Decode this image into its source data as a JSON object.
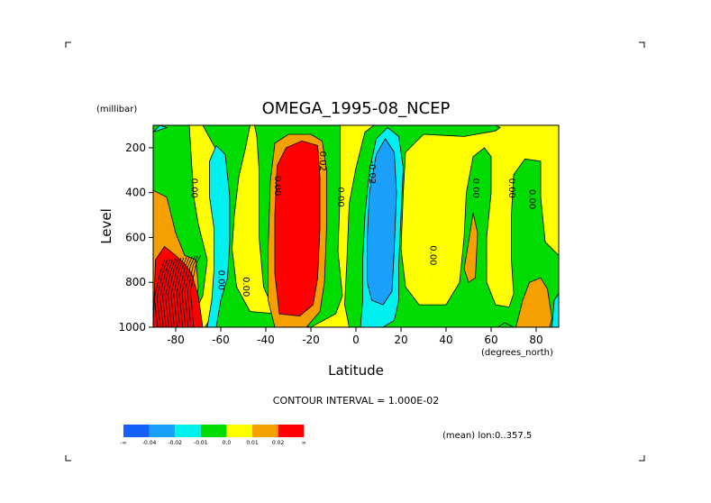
{
  "chart_data": {
    "type": "heatmap",
    "title": "OMEGA_1995-08_NCEP",
    "xlabel": "Latitude",
    "x_units": "(degrees_north)",
    "ylabel": "Level",
    "y_units": "(millibar)",
    "xlim": [
      -90,
      90
    ],
    "ylim": [
      1000,
      100
    ],
    "x_ticks": [
      -80,
      -60,
      -40,
      -20,
      0,
      20,
      40,
      60,
      80
    ],
    "x_tick_labels": [
      "-80",
      "-60",
      "-40",
      "-20",
      "0",
      "20",
      "40",
      "60",
      "80"
    ],
    "y_ticks": [
      200,
      400,
      600,
      800,
      1000
    ],
    "y_tick_labels": [
      "200",
      "400",
      "600",
      "800",
      "1000"
    ],
    "contour_interval": "CONTOUR INTERVAL = 1.000E-02",
    "subtitle": "(mean) lon:0..357.5",
    "colorbar": {
      "colors": [
        "#1560fb",
        "#1aa0f8",
        "#00f0f0",
        "#00dc00",
        "#ffff00",
        "#f5a000",
        "#ff0000"
      ],
      "labels": [
        "-∞",
        "-0.04",
        "-0.02",
        "-0.01",
        "0.0",
        "0.01",
        "0.02",
        "∞"
      ]
    },
    "background_color": "#ffff00",
    "regions": [
      {
        "color": "#00dc00",
        "pts": [
          [
            -90,
            1000
          ],
          [
            -75,
            1000
          ],
          [
            -68,
            860
          ],
          [
            -66,
            700
          ],
          [
            -70,
            540
          ],
          [
            -72,
            420
          ],
          [
            -74,
            100
          ],
          [
            -90,
            100
          ]
        ]
      },
      {
        "color": "#00dc00",
        "pts": [
          [
            -68,
            100
          ],
          [
            -47,
            100
          ],
          [
            -49,
            200
          ],
          [
            -52,
            330
          ],
          [
            -54,
            500
          ],
          [
            -55,
            650
          ],
          [
            -53,
            820
          ],
          [
            -47,
            930
          ],
          [
            -35,
            940
          ],
          [
            -25,
            1000
          ],
          [
            -67,
            1000
          ],
          [
            -62,
            920
          ],
          [
            -59,
            850
          ],
          [
            -57,
            750
          ],
          [
            -57,
            550
          ],
          [
            -58,
            350
          ],
          [
            -62,
            210
          ]
        ]
      },
      {
        "color": "#00dc00",
        "pts": [
          [
            -45,
            100
          ],
          [
            -7,
            100
          ],
          [
            -7,
            400
          ],
          [
            -8,
            660
          ],
          [
            -6,
            860
          ],
          [
            -9,
            940
          ],
          [
            -20,
            1000
          ],
          [
            -35,
            960
          ],
          [
            -41,
            820
          ],
          [
            -43,
            600
          ],
          [
            -43,
            300
          ],
          [
            -44,
            150
          ]
        ]
      },
      {
        "color": "#00dc00",
        "pts": [
          [
            -3,
            1000
          ],
          [
            -5,
            900
          ],
          [
            -4,
            700
          ],
          [
            -3,
            450
          ],
          [
            0,
            290
          ],
          [
            4,
            130
          ],
          [
            8,
            100
          ],
          [
            62,
            100
          ],
          [
            64,
            110
          ],
          [
            62,
            125
          ],
          [
            48,
            150
          ],
          [
            30,
            140
          ],
          [
            22,
            220
          ],
          [
            21,
            400
          ],
          [
            20,
            650
          ],
          [
            22,
            820
          ],
          [
            28,
            900
          ],
          [
            40,
            900
          ],
          [
            46,
            800
          ],
          [
            48,
            600
          ],
          [
            49,
            400
          ],
          [
            52,
            240
          ],
          [
            57,
            200
          ],
          [
            60,
            240
          ],
          [
            60,
            400
          ],
          [
            58,
            600
          ],
          [
            58,
            800
          ],
          [
            62,
            900
          ],
          [
            68,
            910
          ],
          [
            70,
            850
          ],
          [
            69,
            700
          ],
          [
            69,
            500
          ],
          [
            70,
            320
          ],
          [
            75,
            250
          ],
          [
            82,
            260
          ],
          [
            82,
            420
          ],
          [
            84,
            620
          ],
          [
            90,
            680
          ],
          [
            90,
            1000
          ]
        ]
      },
      {
        "color": "#00dc00",
        "pts": [
          [
            -29,
            1000
          ],
          [
            -26,
            960
          ],
          [
            -23,
            1000
          ]
        ]
      },
      {
        "color": "#00dc00",
        "pts": [
          [
            63,
            1000
          ],
          [
            66,
            980
          ],
          [
            70,
            1000
          ]
        ]
      },
      {
        "color": "#00f0f0",
        "pts": [
          [
            -66,
            1000
          ],
          [
            -64,
            880
          ],
          [
            -63,
            740
          ],
          [
            -63,
            560
          ],
          [
            -65,
            420
          ],
          [
            -65,
            260
          ],
          [
            -62,
            190
          ],
          [
            -58,
            230
          ],
          [
            -56,
            420
          ],
          [
            -56,
            620
          ],
          [
            -57,
            780
          ],
          [
            -60,
            880
          ],
          [
            -62,
            1000
          ]
        ]
      },
      {
        "color": "#00f0f0",
        "pts": [
          [
            2,
            1000
          ],
          [
            3,
            880
          ],
          [
            3,
            700
          ],
          [
            4,
            500
          ],
          [
            6,
            300
          ],
          [
            9,
            160
          ],
          [
            14,
            110
          ],
          [
            19,
            150
          ],
          [
            21,
            290
          ],
          [
            20,
            500
          ],
          [
            19,
            720
          ],
          [
            19,
            880
          ],
          [
            17,
            970
          ],
          [
            12,
            1000
          ]
        ]
      },
      {
        "color": "#00f0f0",
        "pts": [
          [
            -90,
            130
          ],
          [
            -87,
            100
          ],
          [
            -84,
            110
          ]
        ]
      },
      {
        "color": "#00f0f0",
        "pts": [
          [
            88,
            880
          ],
          [
            90,
            850
          ],
          [
            90,
            1000
          ],
          [
            87,
            1000
          ]
        ]
      },
      {
        "color": "#1aa0f8",
        "pts": [
          [
            5,
            800
          ],
          [
            5,
            600
          ],
          [
            6,
            400
          ],
          [
            9,
            230
          ],
          [
            13,
            160
          ],
          [
            17,
            220
          ],
          [
            18,
            400
          ],
          [
            17,
            650
          ],
          [
            16,
            840
          ],
          [
            12,
            900
          ],
          [
            7,
            880
          ]
        ]
      },
      {
        "color": "#f5a000",
        "pts": [
          [
            -36,
            1000
          ],
          [
            -39,
            880
          ],
          [
            -39,
            660
          ],
          [
            -38,
            350
          ],
          [
            -36,
            180
          ],
          [
            -30,
            140
          ],
          [
            -20,
            140
          ],
          [
            -15,
            170
          ],
          [
            -13,
            300
          ],
          [
            -13,
            550
          ],
          [
            -14,
            800
          ],
          [
            -16,
            930
          ],
          [
            -22,
            1000
          ]
        ]
      },
      {
        "color": "#f5a000",
        "pts": [
          [
            -90,
            390
          ],
          [
            -84,
            420
          ],
          [
            -80,
            580
          ],
          [
            -76,
            680
          ],
          [
            -71,
            700
          ],
          [
            -70,
            820
          ],
          [
            -72,
            1000
          ],
          [
            -90,
            1000
          ]
        ]
      },
      {
        "color": "#f5a000",
        "pts": [
          [
            48,
            740
          ],
          [
            50,
            620
          ],
          [
            52,
            490
          ],
          [
            54,
            580
          ],
          [
            53,
            780
          ],
          [
            50,
            800
          ]
        ]
      },
      {
        "color": "#f5a000",
        "pts": [
          [
            71,
            1000
          ],
          [
            74,
            880
          ],
          [
            77,
            800
          ],
          [
            82,
            780
          ],
          [
            85,
            830
          ],
          [
            87,
            960
          ],
          [
            86,
            1000
          ]
        ]
      },
      {
        "color": "#ff0000",
        "pts": [
          [
            -34,
            940
          ],
          [
            -36,
            760
          ],
          [
            -36,
            500
          ],
          [
            -35,
            280
          ],
          [
            -31,
            200
          ],
          [
            -24,
            170
          ],
          [
            -17,
            190
          ],
          [
            -16,
            330
          ],
          [
            -16,
            560
          ],
          [
            -17,
            780
          ],
          [
            -19,
            900
          ],
          [
            -25,
            950
          ]
        ]
      },
      {
        "color": "#ff0000",
        "pts": [
          [
            -90,
            1000
          ],
          [
            -89,
            700
          ],
          [
            -85,
            640
          ],
          [
            -80,
            680
          ],
          [
            -76,
            720
          ],
          [
            -73,
            760
          ],
          [
            -70,
            860
          ],
          [
            -68,
            1000
          ]
        ]
      }
    ],
    "contour_labels": [
      {
        "text": "0.00",
        "lat": -73,
        "lev": 380
      },
      {
        "text": "0.00",
        "lat": -61,
        "lev": 790
      },
      {
        "text": "0.00",
        "lat": -50,
        "lev": 820
      },
      {
        "text": "0.00",
        "lat": -36,
        "lev": 370
      },
      {
        "text": "0.02",
        "lat": -16,
        "lev": 260
      },
      {
        "text": "0.00",
        "lat": -8,
        "lev": 420
      },
      {
        "text": "-0.02",
        "lat": 6,
        "lev": 310
      },
      {
        "text": "0.00",
        "lat": 33,
        "lev": 680
      },
      {
        "text": "0.00",
        "lat": 52,
        "lev": 380
      },
      {
        "text": "0.00",
        "lat": 68,
        "lev": 380
      },
      {
        "text": "0.00",
        "lat": 77,
        "lev": 430
      }
    ]
  }
}
